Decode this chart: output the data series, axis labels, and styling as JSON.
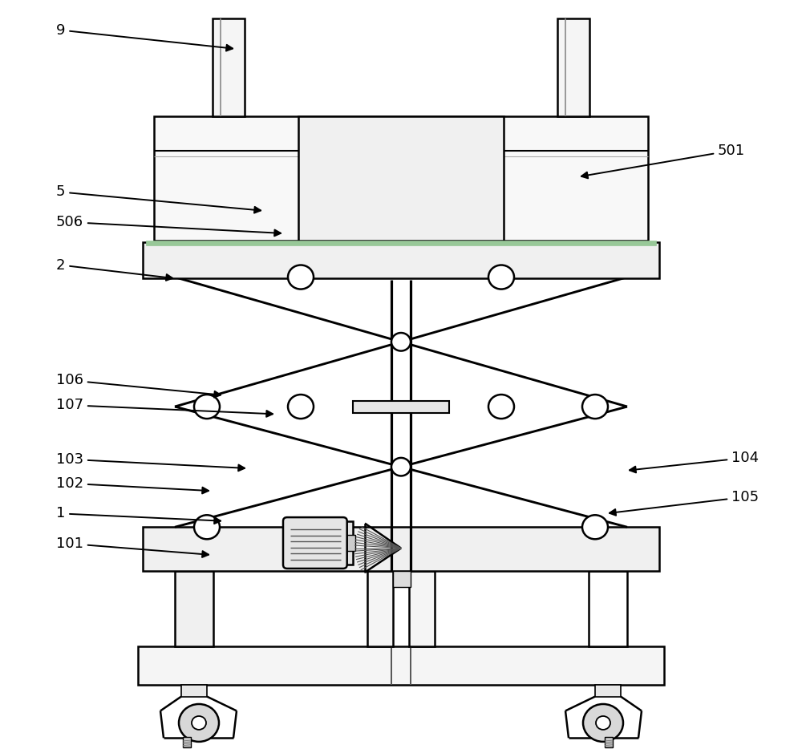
{
  "bg_color": "#ffffff",
  "lc": "#000000",
  "lw": 1.8,
  "annotations": [
    {
      "label": "9",
      "txt": [
        0.07,
        0.96
      ],
      "arr": [
        0.295,
        0.935
      ]
    },
    {
      "label": "501",
      "txt": [
        0.895,
        0.8
      ],
      "arr": [
        0.72,
        0.765
      ]
    },
    {
      "label": "5",
      "txt": [
        0.07,
        0.745
      ],
      "arr": [
        0.33,
        0.72
      ]
    },
    {
      "label": "506",
      "txt": [
        0.07,
        0.705
      ],
      "arr": [
        0.355,
        0.69
      ]
    },
    {
      "label": "2",
      "txt": [
        0.07,
        0.648
      ],
      "arr": [
        0.22,
        0.63
      ]
    },
    {
      "label": "106",
      "txt": [
        0.07,
        0.495
      ],
      "arr": [
        0.28,
        0.475
      ]
    },
    {
      "label": "107",
      "txt": [
        0.07,
        0.462
      ],
      "arr": [
        0.345,
        0.45
      ]
    },
    {
      "label": "103",
      "txt": [
        0.07,
        0.39
      ],
      "arr": [
        0.31,
        0.378
      ]
    },
    {
      "label": "102",
      "txt": [
        0.07,
        0.358
      ],
      "arr": [
        0.265,
        0.348
      ]
    },
    {
      "label": "1",
      "txt": [
        0.07,
        0.318
      ],
      "arr": [
        0.28,
        0.308
      ]
    },
    {
      "label": "101",
      "txt": [
        0.07,
        0.278
      ],
      "arr": [
        0.265,
        0.263
      ]
    },
    {
      "label": "104",
      "txt": [
        0.912,
        0.392
      ],
      "arr": [
        0.78,
        0.375
      ]
    },
    {
      "label": "105",
      "txt": [
        0.912,
        0.34
      ],
      "arr": [
        0.755,
        0.318
      ]
    }
  ]
}
